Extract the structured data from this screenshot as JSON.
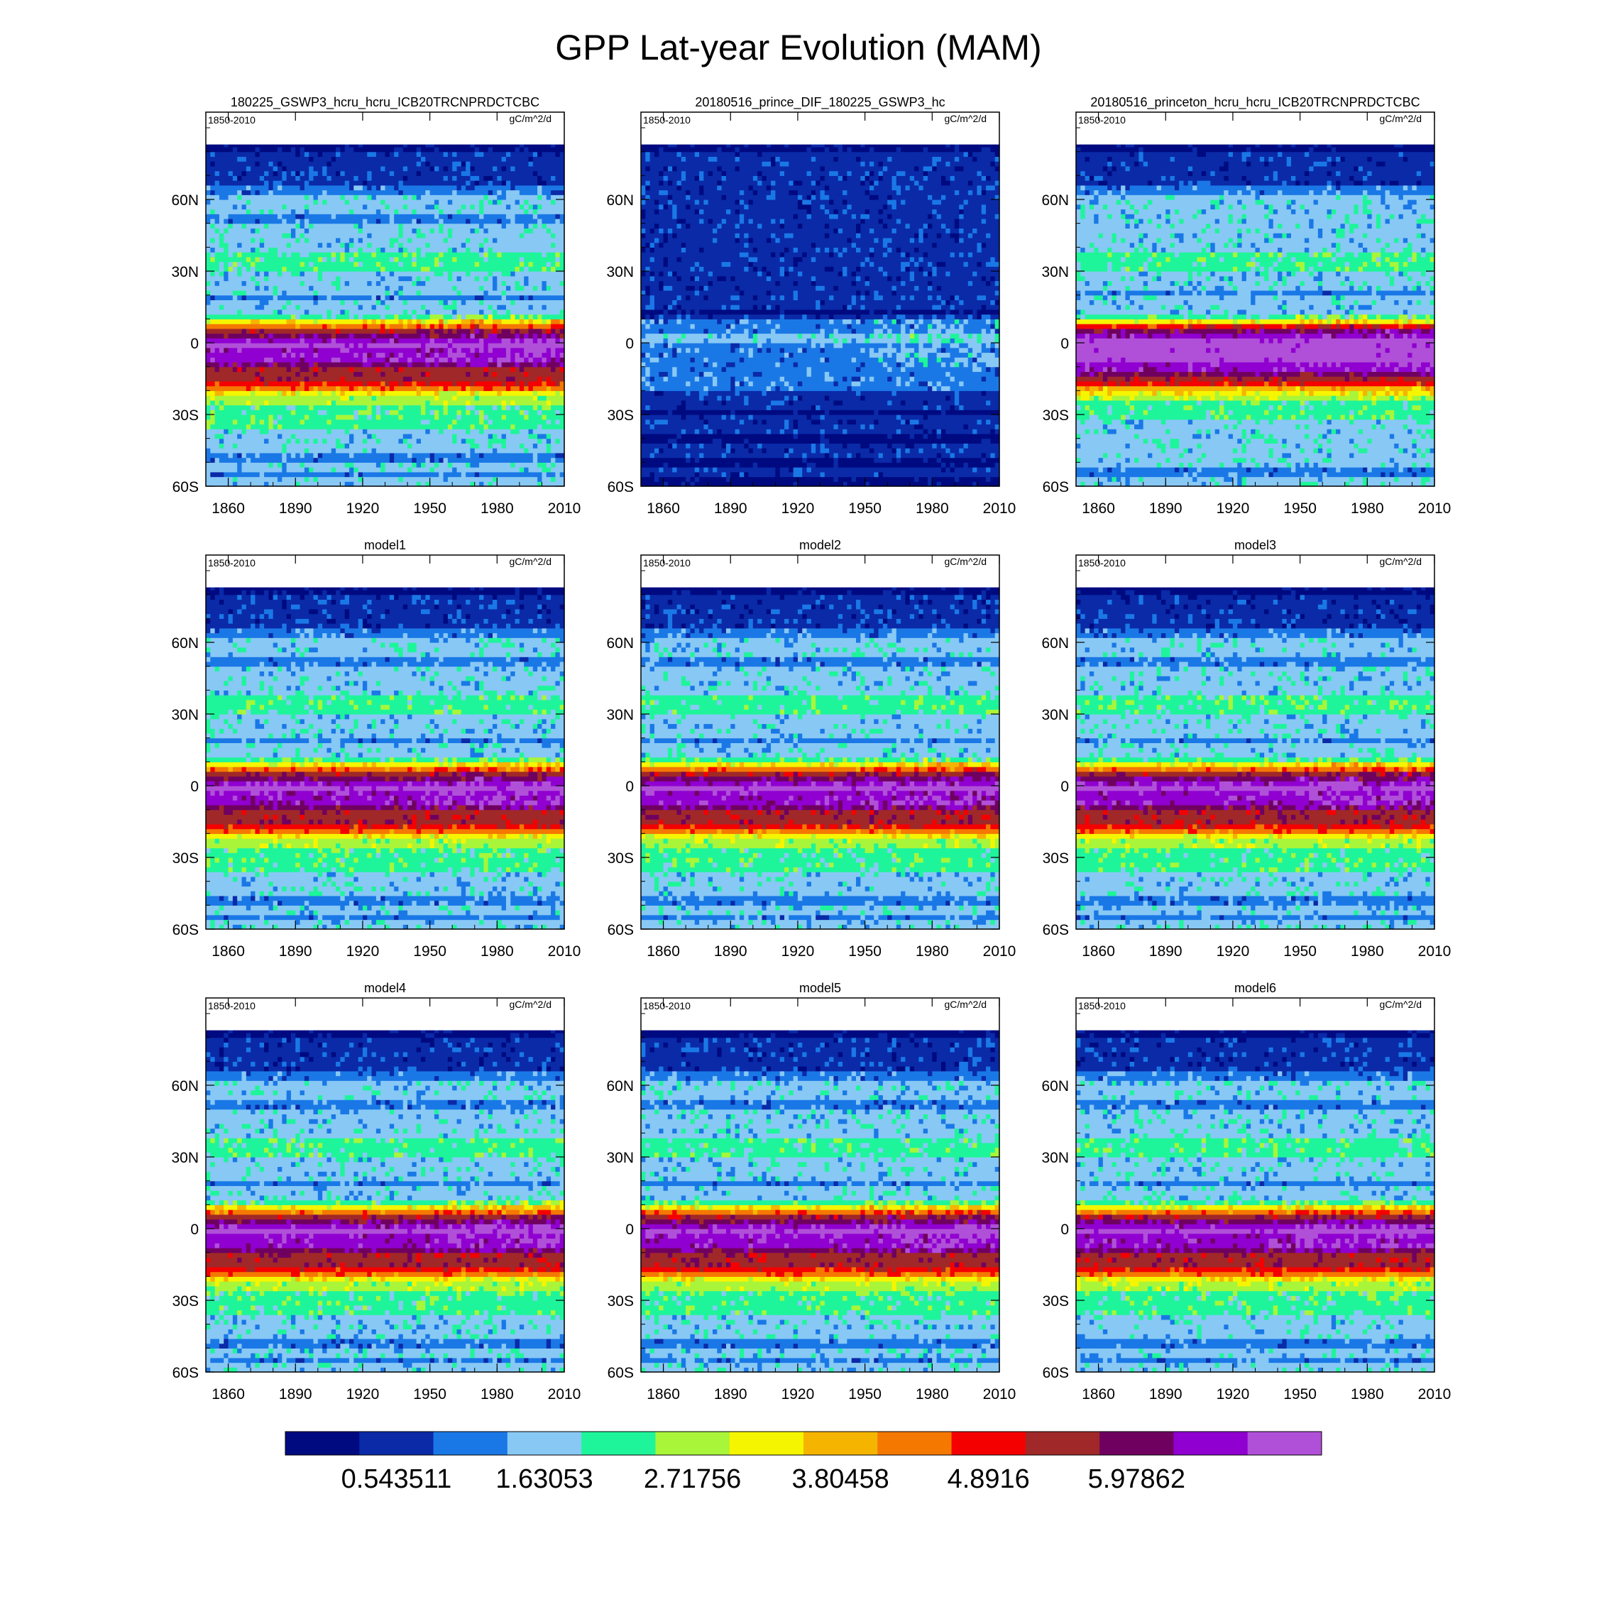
{
  "title": "GPP Lat-year Evolution (MAM)",
  "colors": {
    "palette": [
      "#000a80",
      "#0a2aa8",
      "#1a78e6",
      "#88c8f5",
      "#1ef59a",
      "#a8f53a",
      "#f5f500",
      "#f5b400",
      "#f57800",
      "#f50000",
      "#a02828",
      "#700060",
      "#9000d0",
      "#b050d8"
    ]
  },
  "chart_data": [
    {
      "type": "heatmap",
      "title": "180225_GSWP3_hcru_hcru_ICB20TRCNPRDCTCBC",
      "period": "1850-2010",
      "units": "gC/m^2/d",
      "variant": "base",
      "xlim": [
        1850,
        2010
      ],
      "ylim": [
        -60,
        90
      ],
      "x_ticks": [
        "1860",
        "1890",
        "1920",
        "1950",
        "1980",
        "2010"
      ],
      "y_ticks": [
        "60N",
        "30N",
        "0",
        "30S",
        "60S"
      ]
    },
    {
      "type": "heatmap",
      "title": "20180516_prince_DIF_180225_GSWP3_hc",
      "period": "1850-2010",
      "units": "gC/m^2/d",
      "variant": "diff",
      "xlim": [
        1850,
        2010
      ],
      "ylim": [
        -60,
        90
      ],
      "x_ticks": [
        "1860",
        "1890",
        "1920",
        "1950",
        "1980",
        "2010"
      ],
      "y_ticks": [
        "60N",
        "30N",
        "0",
        "30S",
        "60S"
      ]
    },
    {
      "type": "heatmap",
      "title": "20180516_princeton_hcru_hcru_ICB20TRCNPRDCTCBC",
      "period": "1850-2010",
      "units": "gC/m^2/d",
      "variant": "princeton",
      "xlim": [
        1850,
        2010
      ],
      "ylim": [
        -60,
        90
      ],
      "x_ticks": [
        "1860",
        "1890",
        "1920",
        "1950",
        "1980",
        "2010"
      ],
      "y_ticks": [
        "60N",
        "30N",
        "0",
        "30S",
        "60S"
      ]
    },
    {
      "type": "heatmap",
      "title": "model1",
      "period": "1850-2010",
      "units": "gC/m^2/d",
      "variant": "base",
      "xlim": [
        1850,
        2010
      ],
      "ylim": [
        -60,
        90
      ],
      "x_ticks": [
        "1860",
        "1890",
        "1920",
        "1950",
        "1980",
        "2010"
      ],
      "y_ticks": [
        "60N",
        "30N",
        "0",
        "30S",
        "60S"
      ]
    },
    {
      "type": "heatmap",
      "title": "model2",
      "period": "1850-2010",
      "units": "gC/m^2/d",
      "variant": "base",
      "xlim": [
        1850,
        2010
      ],
      "ylim": [
        -60,
        90
      ],
      "x_ticks": [
        "1860",
        "1890",
        "1920",
        "1950",
        "1980",
        "2010"
      ],
      "y_ticks": [
        "60N",
        "30N",
        "0",
        "30S",
        "60S"
      ]
    },
    {
      "type": "heatmap",
      "title": "model3",
      "period": "1850-2010",
      "units": "gC/m^2/d",
      "variant": "base",
      "xlim": [
        1850,
        2010
      ],
      "ylim": [
        -60,
        90
      ],
      "x_ticks": [
        "1860",
        "1890",
        "1920",
        "1950",
        "1980",
        "2010"
      ],
      "y_ticks": [
        "60N",
        "30N",
        "0",
        "30S",
        "60S"
      ]
    },
    {
      "type": "heatmap",
      "title": "model4",
      "period": "1850-2010",
      "units": "gC/m^2/d",
      "variant": "base",
      "xlim": [
        1850,
        2010
      ],
      "ylim": [
        -60,
        90
      ],
      "x_ticks": [
        "1860",
        "1890",
        "1920",
        "1950",
        "1980",
        "2010"
      ],
      "y_ticks": [
        "60N",
        "30N",
        "0",
        "30S",
        "60S"
      ]
    },
    {
      "type": "heatmap",
      "title": "model5",
      "period": "1850-2010",
      "units": "gC/m^2/d",
      "variant": "base",
      "xlim": [
        1850,
        2010
      ],
      "ylim": [
        -60,
        90
      ],
      "x_ticks": [
        "1860",
        "1890",
        "1920",
        "1950",
        "1980",
        "2010"
      ],
      "y_ticks": [
        "60N",
        "30N",
        "0",
        "30S",
        "60S"
      ]
    },
    {
      "type": "heatmap",
      "title": "model6",
      "period": "1850-2010",
      "units": "gC/m^2/d",
      "variant": "base",
      "xlim": [
        1850,
        2010
      ],
      "ylim": [
        -60,
        90
      ],
      "x_ticks": [
        "1860",
        "1890",
        "1920",
        "1950",
        "1980",
        "2010"
      ],
      "y_ticks": [
        "60N",
        "30N",
        "0",
        "30S",
        "60S"
      ]
    }
  ],
  "colorbar": {
    "labels": [
      "0.543511",
      "1.63053",
      "2.71756",
      "3.80458",
      "4.8916",
      "5.97862"
    ],
    "label_positions": [
      1,
      3,
      5,
      7,
      9,
      11
    ]
  },
  "profiles": {
    "base": [
      [
        -60,
        3
      ],
      [
        -55,
        2
      ],
      [
        -53,
        3
      ],
      [
        -50,
        2
      ],
      [
        -45,
        3
      ],
      [
        -40,
        3
      ],
      [
        -35,
        4
      ],
      [
        -32,
        4
      ],
      [
        -28,
        4
      ],
      [
        -25,
        5
      ],
      [
        -22,
        6
      ],
      [
        -20,
        8
      ],
      [
        -18,
        9
      ],
      [
        -15,
        10
      ],
      [
        -12,
        10
      ],
      [
        -9,
        11
      ],
      [
        -7,
        12
      ],
      [
        -5,
        12
      ],
      [
        -2,
        13
      ],
      [
        0,
        12
      ],
      [
        2,
        11
      ],
      [
        4,
        10
      ],
      [
        6,
        9
      ],
      [
        7,
        8
      ],
      [
        8,
        7
      ],
      [
        9,
        6
      ],
      [
        10,
        5
      ],
      [
        11,
        4
      ],
      [
        12,
        3
      ],
      [
        16,
        3
      ],
      [
        18,
        2
      ],
      [
        20,
        3
      ],
      [
        25,
        3
      ],
      [
        30,
        4
      ],
      [
        35,
        4
      ],
      [
        38,
        3
      ],
      [
        45,
        3
      ],
      [
        50,
        2
      ],
      [
        55,
        3
      ],
      [
        58,
        3
      ],
      [
        62,
        2
      ],
      [
        66,
        1
      ],
      [
        75,
        1
      ],
      [
        80,
        0
      ],
      [
        83,
        0
      ]
    ],
    "princeton": [
      [
        -60,
        3
      ],
      [
        -55,
        2
      ],
      [
        -52,
        3
      ],
      [
        -48,
        3
      ],
      [
        -45,
        3
      ],
      [
        -40,
        3
      ],
      [
        -32,
        4
      ],
      [
        -27,
        4
      ],
      [
        -24,
        5
      ],
      [
        -21,
        6
      ],
      [
        -19,
        7
      ],
      [
        -17,
        9
      ],
      [
        -15,
        10
      ],
      [
        -13,
        11
      ],
      [
        -11,
        12
      ],
      [
        -8,
        13
      ],
      [
        -4,
        13
      ],
      [
        0,
        13
      ],
      [
        3,
        12
      ],
      [
        5,
        11
      ],
      [
        6,
        10
      ],
      [
        7,
        9
      ],
      [
        8,
        7
      ],
      [
        9,
        6
      ],
      [
        10,
        5
      ],
      [
        11,
        4
      ],
      [
        12,
        3
      ],
      [
        18,
        3
      ],
      [
        20,
        2
      ],
      [
        22,
        3
      ],
      [
        28,
        3
      ],
      [
        30,
        4
      ],
      [
        37,
        4
      ],
      [
        39,
        3
      ],
      [
        50,
        3
      ],
      [
        55,
        3
      ],
      [
        60,
        3
      ],
      [
        63,
        2
      ],
      [
        66,
        1
      ],
      [
        75,
        1
      ],
      [
        80,
        0
      ],
      [
        83,
        0
      ]
    ],
    "diff": [
      [
        -60,
        0
      ],
      [
        -55,
        1
      ],
      [
        -52,
        0
      ],
      [
        -48,
        1
      ],
      [
        -42,
        0
      ],
      [
        -38,
        1
      ],
      [
        -34,
        1
      ],
      [
        -30,
        0
      ],
      [
        -27,
        1
      ],
      [
        -23,
        1
      ],
      [
        -20,
        2
      ],
      [
        -10,
        2
      ],
      [
        -5,
        2
      ],
      [
        0,
        3
      ],
      [
        4,
        2
      ],
      [
        8,
        2
      ],
      [
        11,
        1
      ],
      [
        13,
        0
      ],
      [
        15,
        1
      ],
      [
        18,
        1
      ],
      [
        22,
        1
      ],
      [
        30,
        1
      ],
      [
        40,
        1
      ],
      [
        50,
        1
      ],
      [
        60,
        1
      ],
      [
        70,
        1
      ],
      [
        80,
        0
      ],
      [
        83,
        0
      ]
    ]
  }
}
